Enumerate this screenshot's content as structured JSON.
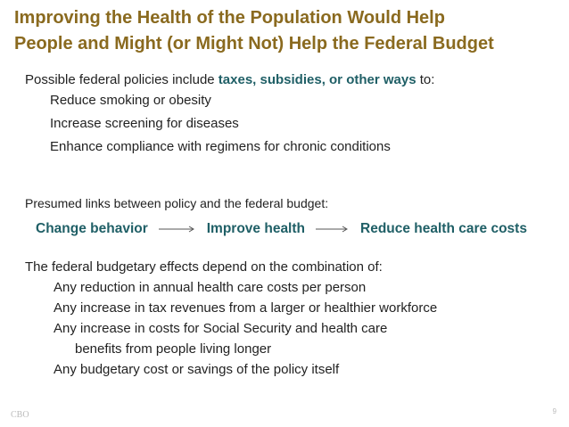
{
  "title": {
    "line1": "Improving the Health of the Population Would Help",
    "line2": "People and Might (or Might Not) Help the Federal Budget"
  },
  "policies": {
    "intro_prefix": "Possible federal policies include ",
    "intro_highlight": "taxes, subsidies, or other ways",
    "intro_suffix": " to:",
    "items": [
      "Reduce smoking or obesity",
      "Increase screening for diseases",
      "Enhance compliance with regimens for chronic conditions"
    ]
  },
  "links": {
    "heading": "Presumed links between policy and the federal budget:",
    "steps": [
      "Change behavior",
      "Improve health",
      "Reduce health care costs"
    ]
  },
  "effects": {
    "heading": "The federal budgetary effects depend on the combination of:",
    "items": [
      "Any reduction in annual health care costs per person",
      "Any increase in tax revenues from a larger or healthier workforce",
      "Any increase in costs for Social Security and health care"
    ],
    "continuation": "benefits from people living longer",
    "last_item": "Any budgetary cost or savings of the policy itself"
  },
  "footer": {
    "left": "CBO",
    "page_number": "9"
  },
  "colors": {
    "title": "#8a6a1f",
    "accent": "#1f5f66"
  }
}
